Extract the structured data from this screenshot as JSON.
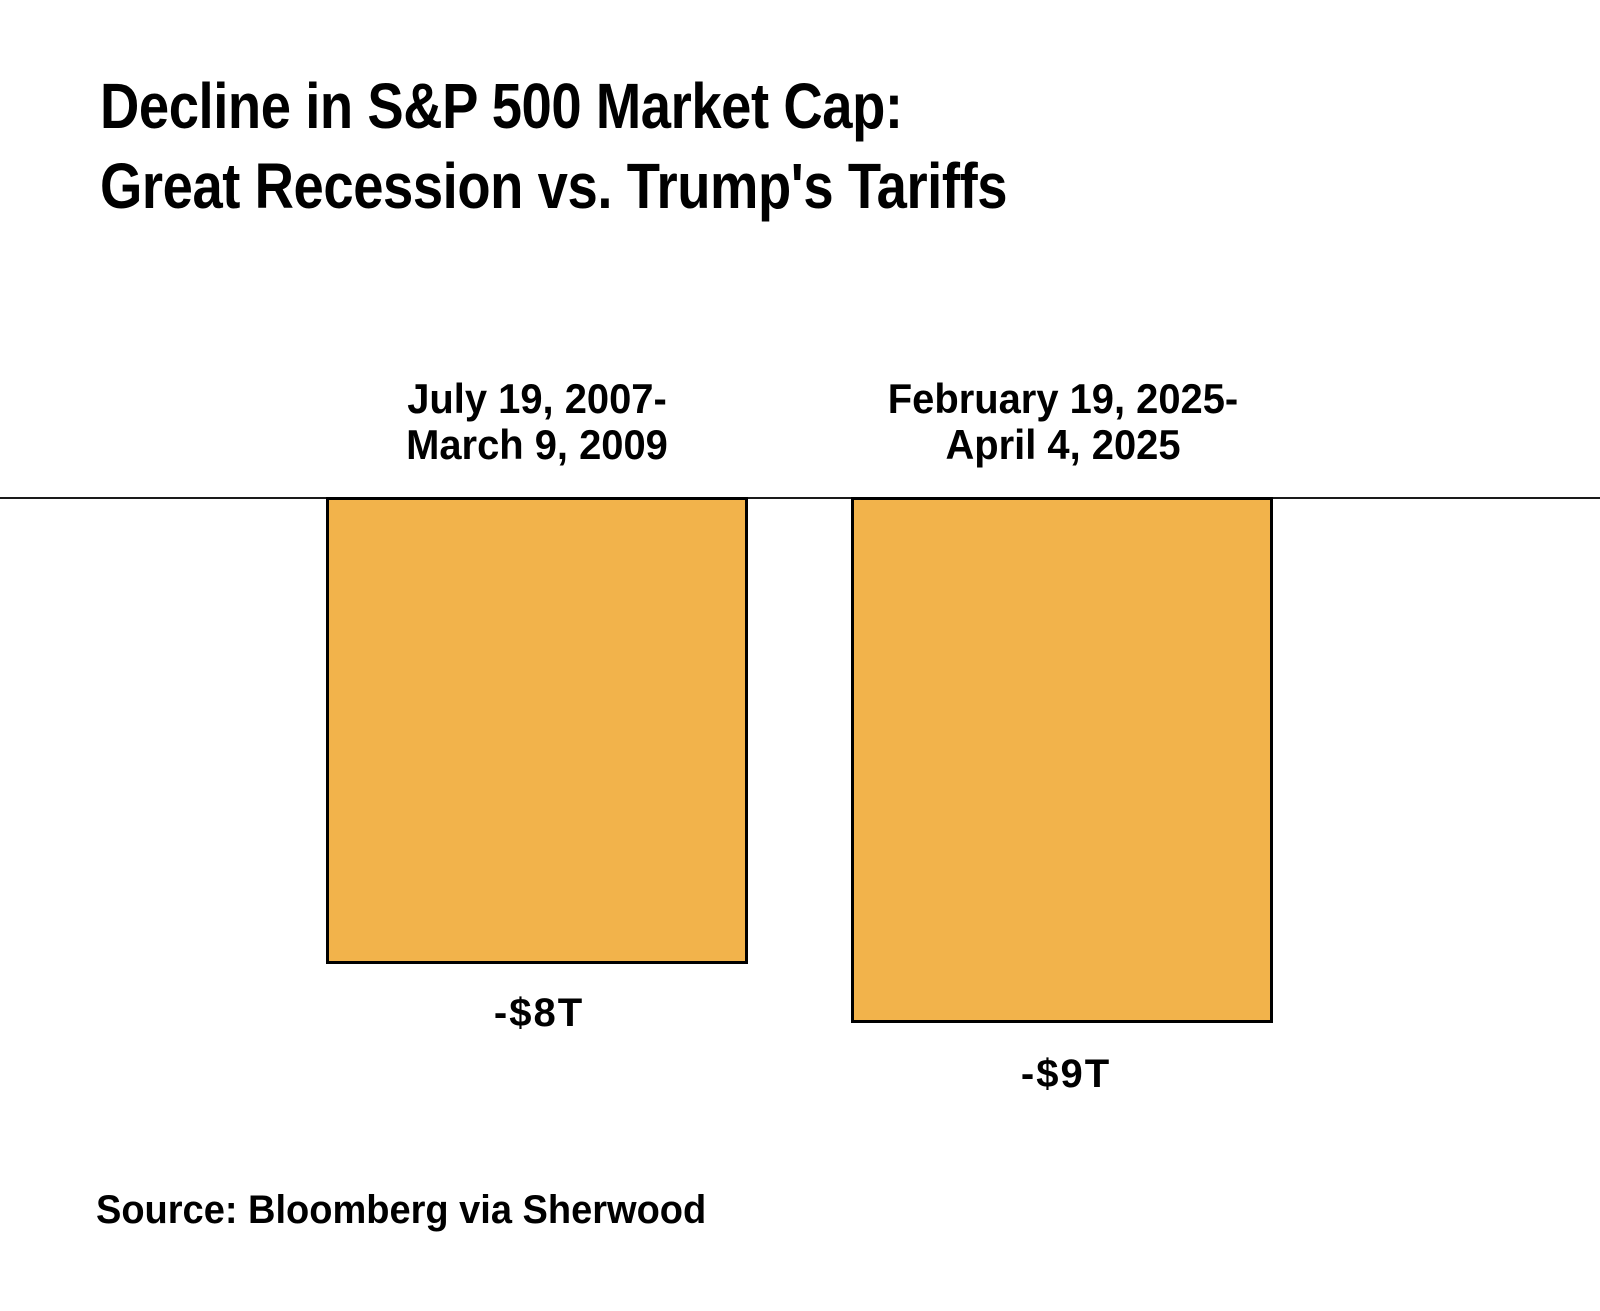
{
  "chart_data": {
    "type": "bar",
    "orientation": "vertical-negative",
    "title": "Decline in S&P 500 Market Cap: Great Recession vs. Trump's Tariffs",
    "title_lines": [
      "Decline in S&P 500 Market Cap:",
      "Great Recession vs. Trump's Tariffs"
    ],
    "categories": [
      "July 19, 2007-March 9, 2009",
      "February 19, 2025-April 4, 2025"
    ],
    "category_label_lines": [
      [
        "July 19, 2007-",
        "March 9, 2009"
      ],
      [
        "February 19, 2025-",
        "April 4, 2025"
      ]
    ],
    "values": [
      -8,
      -9
    ],
    "value_labels": [
      "-$8T",
      "-$9T"
    ],
    "value_unit": "trillions of USD",
    "baseline_value": 0,
    "grid": false,
    "legend": false,
    "bar_color": "#F2B34B",
    "bar_border_color": "#000000",
    "baseline_color": "#1a1a1a",
    "source": "Source: Bloomberg via Sherwood"
  }
}
